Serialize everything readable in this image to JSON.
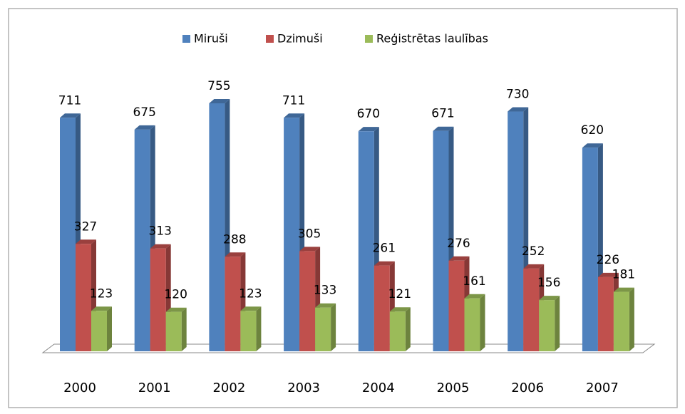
{
  "chart_data": {
    "type": "bar3d",
    "categories": [
      "2000",
      "2001",
      "2002",
      "2003",
      "2004",
      "2005",
      "2006",
      "2007"
    ],
    "series": [
      {
        "name": "Miruši",
        "color": "#4f81bd",
        "values": [
          711,
          675,
          755,
          711,
          670,
          671,
          730,
          620
        ]
      },
      {
        "name": "Dzimuši",
        "color": "#c0504d",
        "values": [
          327,
          313,
          288,
          305,
          261,
          276,
          252,
          226
        ]
      },
      {
        "name": "Reģistrētas laulības",
        "color": "#9bbb59",
        "values": [
          123,
          120,
          123,
          133,
          121,
          161,
          156,
          181
        ]
      }
    ],
    "legend": "top"
  }
}
